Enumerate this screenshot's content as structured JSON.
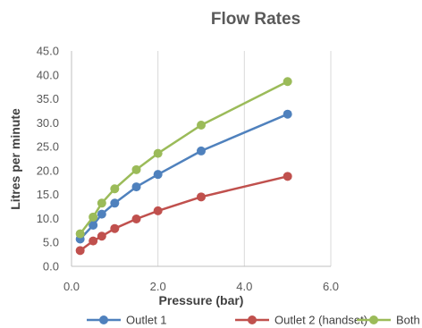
{
  "chart_data": {
    "type": "line",
    "title": "Flow Rates",
    "xlabel": "Pressure (bar)",
    "ylabel": "Litres per minute",
    "xlim": [
      0,
      6
    ],
    "ylim": [
      0,
      45
    ],
    "x_ticks": [
      "0.0",
      "2.0",
      "4.0",
      "6.0"
    ],
    "y_ticks": [
      "0.0",
      "5.0",
      "10.0",
      "15.0",
      "20.0",
      "25.0",
      "30.0",
      "35.0",
      "40.0",
      "45.0"
    ],
    "x_tick_values": [
      0,
      2,
      4,
      6
    ],
    "y_tick_values": [
      0,
      5,
      10,
      15,
      20,
      25,
      30,
      35,
      40,
      45
    ],
    "grid": "vertical",
    "legend_position": "bottom",
    "x": [
      0.2,
      0.5,
      0.7,
      1.0,
      1.5,
      2.0,
      3.0,
      5.0
    ],
    "series": [
      {
        "name": "Outlet 1",
        "color": "#4f81bd",
        "values": [
          5.7,
          8.6,
          10.9,
          13.2,
          16.6,
          19.2,
          24.1,
          31.8
        ]
      },
      {
        "name": "Outlet 2 (handset)",
        "color": "#c0504d",
        "values": [
          3.3,
          5.3,
          6.3,
          7.9,
          9.9,
          11.6,
          14.5,
          18.8
        ]
      },
      {
        "name": "Both",
        "color": "#9bbb59",
        "values": [
          6.8,
          10.3,
          13.2,
          16.2,
          20.2,
          23.6,
          29.5,
          38.6
        ]
      }
    ]
  }
}
